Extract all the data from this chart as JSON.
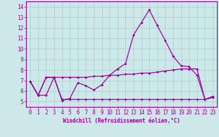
{
  "x": [
    0,
    1,
    2,
    3,
    4,
    5,
    6,
    7,
    8,
    9,
    10,
    11,
    12,
    13,
    14,
    15,
    16,
    17,
    18,
    19,
    20,
    21,
    22,
    23
  ],
  "line1": [
    6.9,
    5.6,
    5.6,
    7.3,
    5.1,
    5.3,
    6.8,
    6.5,
    6.1,
    6.6,
    7.5,
    8.1,
    8.6,
    11.3,
    12.5,
    13.7,
    12.2,
    10.8,
    9.3,
    8.4,
    8.3,
    7.5,
    5.2,
    5.5
  ],
  "line2": [
    6.9,
    5.6,
    7.3,
    7.3,
    7.3,
    7.3,
    7.3,
    7.3,
    7.4,
    7.4,
    7.5,
    7.5,
    7.6,
    7.6,
    7.7,
    7.7,
    7.8,
    7.9,
    8.0,
    8.1,
    8.1,
    8.1,
    5.2,
    5.4
  ],
  "line3": [
    6.9,
    5.6,
    7.3,
    7.3,
    5.2,
    5.2,
    5.2,
    5.2,
    5.2,
    5.2,
    5.2,
    5.2,
    5.2,
    5.2,
    5.2,
    5.2,
    5.2,
    5.2,
    5.2,
    5.2,
    5.2,
    5.2,
    5.2,
    5.4
  ],
  "bg_color": "#cce8e8",
  "line_color": "#990099",
  "grid_color": "#aacccc",
  "xlabel": "Windchill (Refroidissement éolien,°C)",
  "xlim": [
    -0.5,
    23.5
  ],
  "ylim": [
    4.5,
    14.5
  ],
  "yticks": [
    5,
    6,
    7,
    8,
    9,
    10,
    11,
    12,
    13,
    14
  ],
  "xticks": [
    0,
    1,
    2,
    3,
    4,
    5,
    6,
    7,
    8,
    9,
    10,
    11,
    12,
    13,
    14,
    15,
    16,
    17,
    18,
    19,
    20,
    21,
    22,
    23
  ],
  "tick_fontsize": 5.5,
  "xlabel_fontsize": 5.5
}
